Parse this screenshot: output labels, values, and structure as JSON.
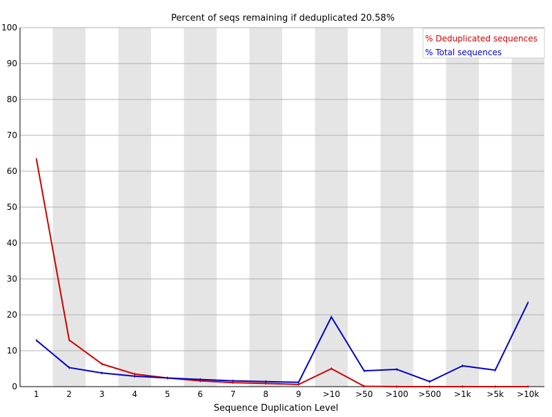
{
  "chart_data": {
    "type": "line",
    "title": "Percent of seqs remaining if deduplicated 20.58%",
    "xlabel": "Sequence Duplication Level",
    "ylabel": "",
    "ylim": [
      0,
      100
    ],
    "yticks": [
      0,
      10,
      20,
      30,
      40,
      50,
      60,
      70,
      80,
      90,
      100
    ],
    "categories": [
      "1",
      "2",
      "3",
      "4",
      "5",
      "6",
      "7",
      "8",
      "9",
      ">10",
      ">50",
      ">100",
      ">500",
      ">1k",
      ">5k",
      ">10k"
    ],
    "grid": true,
    "alternating_band_color": "#e5e5e5",
    "legend_position": "top-right",
    "series": [
      {
        "name": "% Deduplicated sequences",
        "color": "#cc0000",
        "values": [
          63.4,
          13.0,
          6.3,
          3.5,
          2.4,
          1.6,
          1.1,
          0.9,
          0.6,
          5.0,
          0.1,
          0.0,
          0.0,
          0.0,
          0.0,
          0.0
        ]
      },
      {
        "name": "% Total sequences",
        "color": "#0000cc",
        "values": [
          12.9,
          5.3,
          3.8,
          2.9,
          2.4,
          2.0,
          1.6,
          1.4,
          1.2,
          19.4,
          4.4,
          4.8,
          1.4,
          5.8,
          4.6,
          23.4
        ]
      }
    ]
  }
}
